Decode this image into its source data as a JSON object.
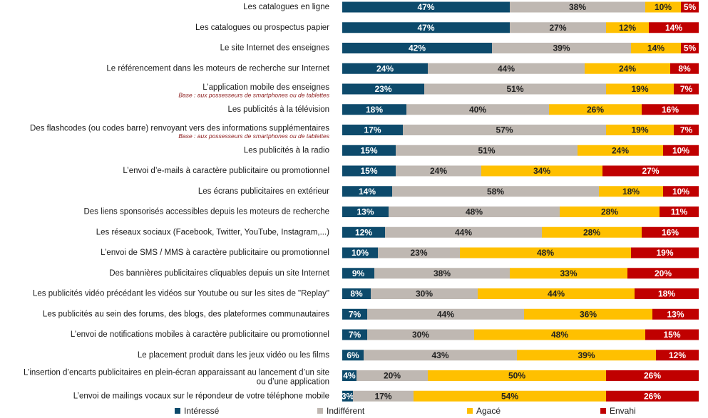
{
  "chart_data": {
    "type": "bar",
    "orientation": "horizontal",
    "stacked": true,
    "colors": {
      "Intéressé": "#0d4a6b",
      "Indifférent": "#bfb8b2",
      "Agacé": "#ffc000",
      "Envahi": "#c00000"
    },
    "series_names": [
      "Intéressé",
      "Indifférent",
      "Agacé",
      "Envahi"
    ],
    "categories": [
      "Les catalogues en ligne",
      "Les catalogues ou prospectus papier",
      "Le site Internet des enseignes",
      "Le référencement dans les moteurs de recherche sur Internet",
      "L’application mobile des enseignes",
      "Les publicités à la télévision",
      "Des flashcodes (ou codes barre) renvoyant vers des informations supplémentaires",
      "Les publicités à la radio",
      "L’envoi d’e-mails à caractère publicitaire ou promotionnel",
      "Les écrans publicitaires en extérieur",
      "Des liens sponsorisés accessibles depuis les moteurs de recherche",
      "Les réseaux sociaux (Facebook, Twitter, YouTube, Instagram,...)",
      "L’envoi de SMS / MMS à caractère publicitaire ou promotionnel",
      "Des bannières publicitaires cliquables depuis un site Internet",
      "Les publicités vidéo précédant les vidéos sur Youtube ou sur les sites de \"Replay\"",
      "Les publicités au sein des forums, des blogs, des plateformes communautaires",
      "L’envoi de notifications mobiles à caractère publicitaire ou promotionnel",
      "Le placement produit dans les jeux vidéo ou les films",
      "L’insertion d’encarts publicitaires en plein-écran apparaissant au lancement d’un site ou d’une application",
      "L’envoi de mailings vocaux sur le répondeur de votre téléphone mobile"
    ],
    "notes": [
      "",
      "",
      "",
      "",
      "Base : aux possesseurs de smartphones ou de tablettes",
      "",
      "Base : aux possesseurs de smartphones ou de tablettes",
      "",
      "",
      "",
      "",
      "",
      "",
      "",
      "",
      "",
      "",
      "",
      "",
      ""
    ],
    "series": [
      {
        "name": "Intéressé",
        "values": [
          47,
          47,
          42,
          24,
          23,
          18,
          17,
          15,
          15,
          14,
          13,
          12,
          10,
          9,
          8,
          7,
          7,
          6,
          4,
          3
        ]
      },
      {
        "name": "Indifférent",
        "values": [
          38,
          27,
          39,
          44,
          51,
          40,
          57,
          51,
          24,
          58,
          48,
          44,
          23,
          38,
          30,
          44,
          30,
          43,
          20,
          17
        ]
      },
      {
        "name": "Agacé",
        "values": [
          10,
          12,
          14,
          24,
          19,
          26,
          19,
          24,
          34,
          18,
          28,
          28,
          48,
          33,
          44,
          36,
          48,
          39,
          50,
          54
        ]
      },
      {
        "name": "Envahi",
        "values": [
          5,
          14,
          5,
          8,
          7,
          16,
          7,
          10,
          27,
          10,
          11,
          16,
          19,
          20,
          18,
          13,
          15,
          12,
          26,
          26
        ]
      }
    ],
    "value_suffix": "%",
    "legend_position": "bottom",
    "grid": false
  }
}
